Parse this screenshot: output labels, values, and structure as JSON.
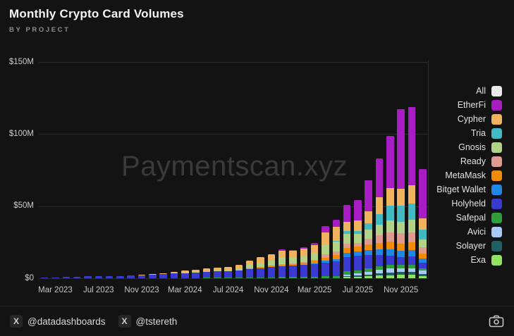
{
  "header": {
    "title": "Monthly Crypto Card Volumes",
    "subtitle": "BY PROJECT"
  },
  "watermark": "Paymentscan.xyz",
  "legend": {
    "items": [
      {
        "label": "All",
        "color": "#e9e9e9"
      },
      {
        "label": "EtherFi",
        "color": "#a81cc4"
      },
      {
        "label": "Cypher",
        "color": "#f0b35e"
      },
      {
        "label": "Tria",
        "color": "#41bac4"
      },
      {
        "label": "Gnosis",
        "color": "#b2d287"
      },
      {
        "label": "Ready",
        "color": "#e09b90"
      },
      {
        "label": "MetaMask",
        "color": "#f28c04"
      },
      {
        "label": "Bitget Wallet",
        "color": "#2187e4"
      },
      {
        "label": "Holyheld",
        "color": "#3a3ad0"
      },
      {
        "label": "Safepal",
        "color": "#2f9e3c"
      },
      {
        "label": "Avici",
        "color": "#a9c9f7"
      },
      {
        "label": "Solayer",
        "color": "#1e6064"
      },
      {
        "label": "Exa",
        "color": "#90e260"
      }
    ]
  },
  "footer": {
    "handle1": "@datadashboards",
    "handle2": "@tstereth",
    "x_badge": "X"
  },
  "chart_data": {
    "type": "bar",
    "stacked": true,
    "title": "Monthly Crypto Card Volumes",
    "subtitle": "BY PROJECT",
    "unit": "USD millions",
    "ylim": [
      0,
      150
    ],
    "grid": "horizontal",
    "legend_position": "right",
    "yticks": [
      {
        "label": "$150M",
        "value": 150
      },
      {
        "label": "$100M",
        "value": 100
      },
      {
        "label": "$50M",
        "value": 50
      },
      {
        "label": "$0",
        "value": 0
      }
    ],
    "x": [
      "Feb 2023",
      "Mar 2023",
      "Apr 2023",
      "May 2023",
      "Jun 2023",
      "Jul 2023",
      "Aug 2023",
      "Sep 2023",
      "Oct 2023",
      "Nov 2023",
      "Dec 2023",
      "Jan 2024",
      "Feb 2024",
      "Mar 2024",
      "Apr 2024",
      "May 2024",
      "Jun 2024",
      "Jul 2024",
      "Aug 2024",
      "Sep 2024",
      "Oct 2024",
      "Nov 2024",
      "Dec 2024",
      "Jan 2025",
      "Feb 2025",
      "Mar 2025",
      "Apr 2025",
      "May 2025",
      "Jun 2025",
      "Jul 2025",
      "Aug 2025",
      "Sep 2025",
      "Oct 2025",
      "Nov 2025",
      "Dec 2025",
      "Jan 2026"
    ],
    "x_tick_labels": [
      "Mar 2023",
      "Jul 2023",
      "Nov 2023",
      "Mar 2024",
      "Jul 2024",
      "Nov 2024",
      "Mar 2025",
      "Jul 2025",
      "Nov 2025"
    ],
    "series": [
      {
        "name": "EtherFi",
        "color": "#a81cc4",
        "values": [
          0,
          0,
          0,
          0,
          0,
          0,
          0,
          0,
          0,
          0,
          0,
          0,
          0,
          0,
          0,
          0,
          0,
          0,
          0,
          0,
          0,
          0,
          0.8,
          0.5,
          0.7,
          1.5,
          4.5,
          5.0,
          11.5,
          14.0,
          21.5,
          27.0,
          36.0,
          55.0,
          54.5,
          34.0
        ]
      },
      {
        "name": "Cypher",
        "color": "#f0b35e",
        "values": [
          0,
          0,
          0,
          0,
          0,
          0,
          0,
          0,
          0,
          0.1,
          0.4,
          0.8,
          1.1,
          1.4,
          1.5,
          1.7,
          1.9,
          2.1,
          2.5,
          3.1,
          3.9,
          4.5,
          5.0,
          4.7,
          5.1,
          5.5,
          9.0,
          9.5,
          6.5,
          7.5,
          8.5,
          11.5,
          12.5,
          12.0,
          12.5,
          8.0
        ]
      },
      {
        "name": "Tria",
        "color": "#41bac4",
        "values": [
          0,
          0,
          0,
          0,
          0,
          0,
          0,
          0,
          0,
          0,
          0,
          0,
          0,
          0,
          0,
          0,
          0,
          0,
          0,
          0,
          0,
          0,
          0,
          0,
          0,
          0,
          0,
          0.5,
          2.0,
          2.0,
          4.5,
          7.5,
          10.0,
          11.0,
          11.5,
          7.0
        ]
      },
      {
        "name": "Gnosis",
        "color": "#b2d287",
        "values": [
          0,
          0,
          0,
          0,
          0,
          0,
          0,
          0,
          0,
          0,
          0,
          0,
          0,
          0.2,
          0.4,
          0.5,
          0.6,
          0.8,
          1.0,
          2.2,
          2.8,
          3.2,
          4.5,
          3.8,
          4.2,
          4.5,
          6.0,
          7.0,
          6.8,
          6.0,
          6.5,
          7.0,
          8.5,
          8.0,
          8.5,
          5.5
        ]
      },
      {
        "name": "Ready",
        "color": "#e09b90",
        "values": [
          0,
          0,
          0,
          0,
          0,
          0,
          0,
          0,
          0,
          0,
          0,
          0,
          0,
          0,
          0,
          0,
          0,
          0,
          0,
          0,
          0,
          0,
          0.3,
          0.4,
          0.5,
          0.8,
          2.4,
          2.6,
          2.9,
          2.5,
          3.5,
          5.5,
          6.5,
          7.0,
          7.0,
          4.0
        ]
      },
      {
        "name": "MetaMask",
        "color": "#f28c04",
        "values": [
          0,
          0,
          0,
          0,
          0,
          0,
          0,
          0,
          0,
          0,
          0,
          0,
          0,
          0,
          0,
          0,
          0,
          0,
          0,
          0.6,
          0.9,
          1.1,
          1.1,
          1.2,
          1.4,
          1.6,
          2.4,
          2.6,
          3.4,
          3.5,
          4.0,
          4.5,
          5.0,
          5.3,
          5.5,
          3.4
        ]
      },
      {
        "name": "Bitget Wallet",
        "color": "#2187e4",
        "values": [
          0,
          0,
          0,
          0,
          0,
          0,
          0,
          0,
          0,
          0,
          0,
          0,
          0,
          0,
          0,
          0,
          0,
          0,
          0,
          0,
          0,
          0,
          0,
          0,
          0,
          0.5,
          1.0,
          1.5,
          2.9,
          3.0,
          3.5,
          4.0,
          4.3,
          4.3,
          4.5,
          2.9
        ]
      },
      {
        "name": "Holyheld",
        "color": "#3a3ad0",
        "values": [
          0.3,
          0.5,
          0.8,
          1.2,
          1.7,
          1.4,
          1.5,
          1.7,
          1.9,
          2.2,
          2.4,
          2.8,
          3.2,
          3.6,
          3.9,
          4.2,
          4.5,
          4.8,
          5.2,
          5.8,
          6.4,
          7.0,
          7.5,
          8.0,
          8.5,
          9.0,
          9.5,
          10.2,
          10.1,
          10.2,
          9.2,
          7.5,
          6.5,
          5.5,
          5.5,
          3.9
        ]
      },
      {
        "name": "Safepal",
        "color": "#2f9e3c",
        "values": [
          0,
          0,
          0,
          0,
          0,
          0,
          0,
          0,
          0,
          0,
          0,
          0,
          0,
          0,
          0.2,
          0.3,
          0.3,
          0.3,
          0.4,
          0.5,
          0.6,
          0.7,
          0.8,
          0.8,
          0.9,
          1.0,
          1.5,
          1.7,
          2.4,
          2.2,
          2.5,
          2.5,
          2.5,
          2.4,
          2.5,
          1.5
        ]
      },
      {
        "name": "Avici",
        "color": "#a9c9f7",
        "values": [
          0,
          0,
          0,
          0,
          0,
          0,
          0,
          0,
          0,
          0,
          0,
          0,
          0,
          0,
          0,
          0,
          0,
          0,
          0,
          0,
          0,
          0,
          0,
          0,
          0,
          0,
          0,
          0,
          1.0,
          1.5,
          2.0,
          2.5,
          3.0,
          2.4,
          2.5,
          2.9
        ]
      },
      {
        "name": "Solayer",
        "color": "#1e6064",
        "values": [
          0,
          0,
          0,
          0,
          0,
          0,
          0,
          0,
          0,
          0,
          0,
          0,
          0,
          0,
          0,
          0,
          0,
          0,
          0,
          0,
          0,
          0,
          0,
          0,
          0,
          0,
          0,
          0,
          0.5,
          0.8,
          1.0,
          1.5,
          1.7,
          1.9,
          2.0,
          1.1
        ]
      },
      {
        "name": "Exa",
        "color": "#90e260",
        "values": [
          0,
          0,
          0,
          0,
          0,
          0,
          0,
          0,
          0,
          0,
          0,
          0,
          0,
          0,
          0,
          0,
          0,
          0,
          0,
          0,
          0,
          0,
          0,
          0,
          0,
          0,
          0,
          0,
          0.8,
          1.0,
          1.5,
          2.0,
          2.2,
          2.4,
          2.5,
          1.6
        ]
      }
    ]
  }
}
